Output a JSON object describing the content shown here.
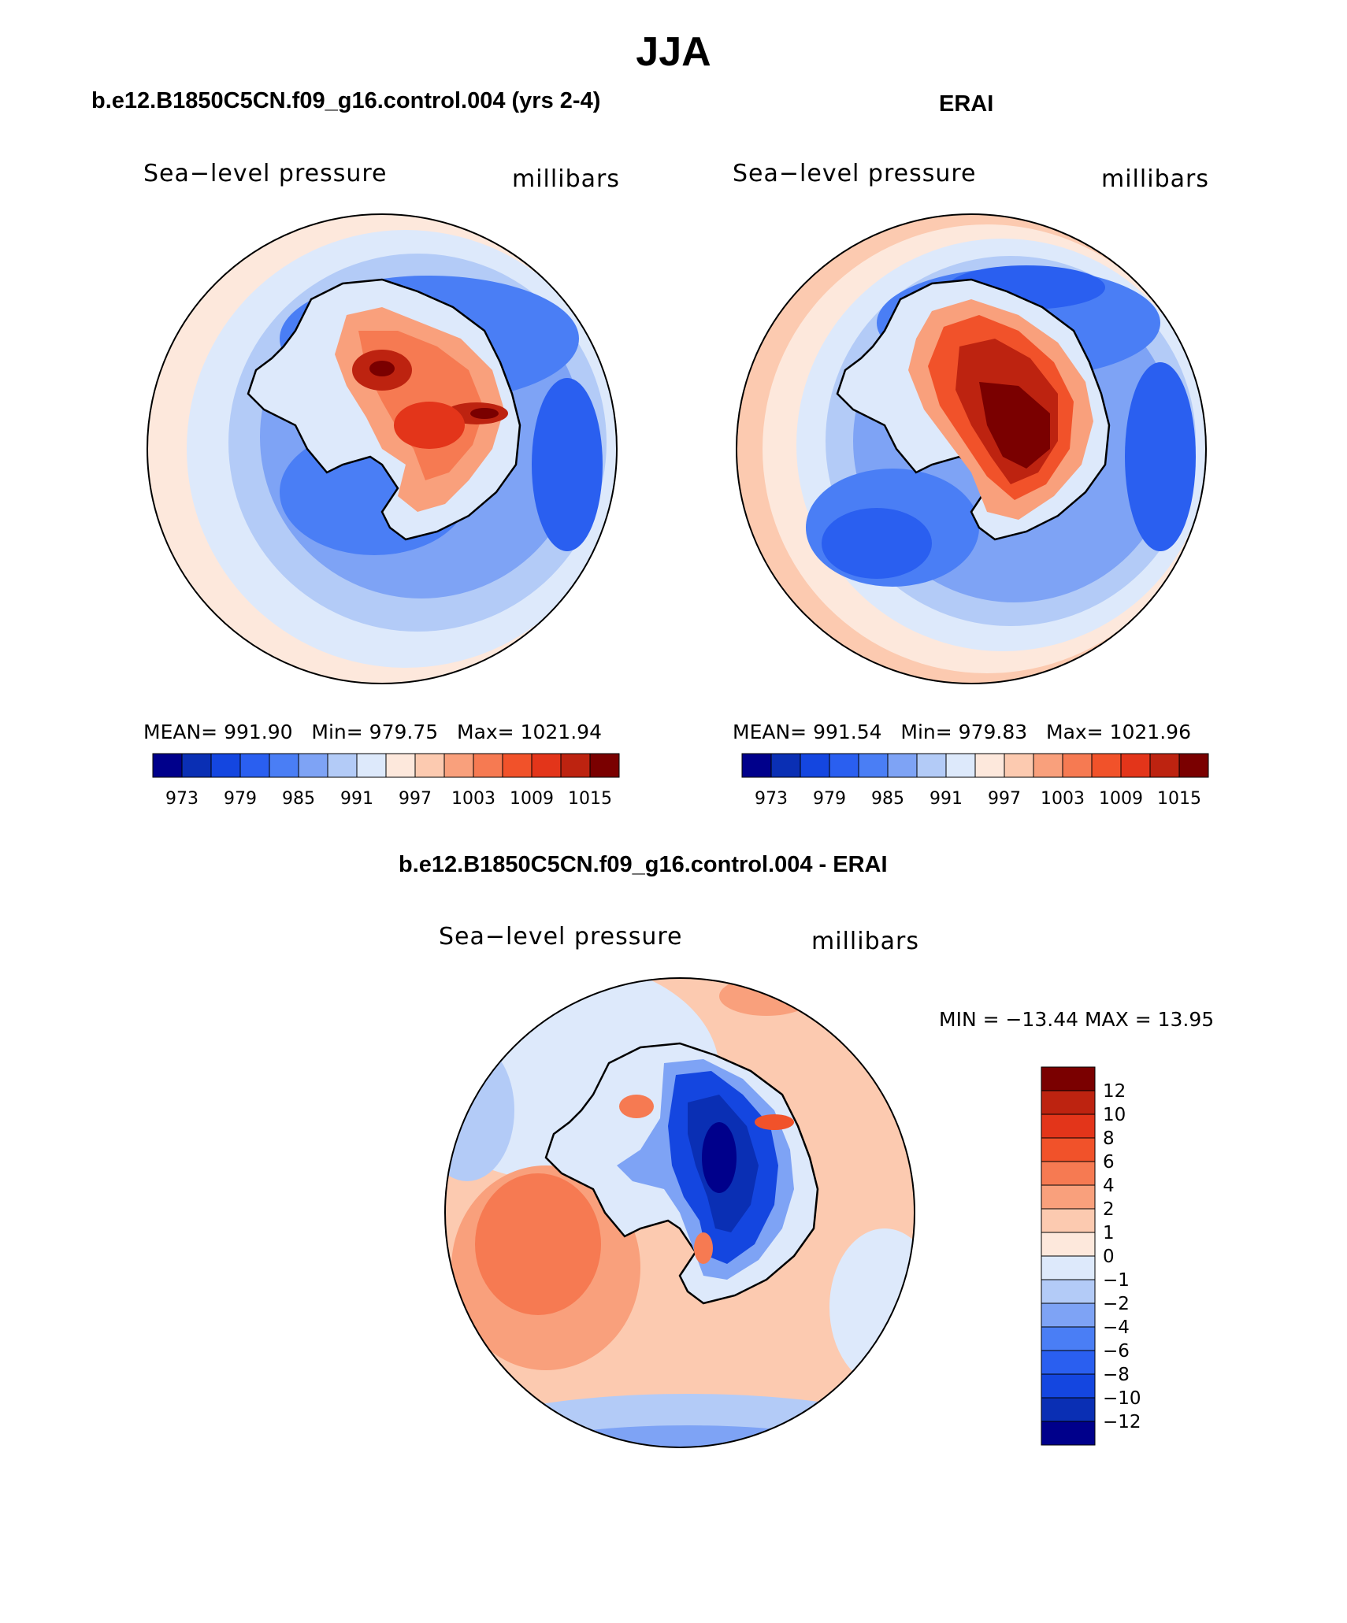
{
  "figure": {
    "title": "JJA",
    "difference_title": "b.e12.B1850C5CN.f09_g16.control.004 - ERAI"
  },
  "chart_data": [
    {
      "type": "heatmap",
      "title": "b.e12.B1850C5CN.f09_g16.control.004 (yrs 2-4)",
      "variable": "Sea−level pressure",
      "units": "millibars",
      "projection": "south polar stereographic",
      "stats": {
        "mean_label": "MEAN=",
        "mean": "991.90",
        "min_label": "Min=",
        "min": "979.75",
        "max_label": "Max=",
        "max": "1021.94"
      },
      "colorbar_ticks": [
        "973",
        "979",
        "985",
        "991",
        "997",
        "1003",
        "1009",
        "1015"
      ]
    },
    {
      "type": "heatmap",
      "title": "ERAI",
      "variable": "Sea−level pressure",
      "units": "millibars",
      "projection": "south polar stereographic",
      "stats": {
        "mean_label": "MEAN=",
        "mean": "991.54",
        "min_label": "Min=",
        "min": "979.83",
        "max_label": "Max=",
        "max": "1021.96"
      },
      "colorbar_ticks": [
        "973",
        "979",
        "985",
        "991",
        "997",
        "1003",
        "1009",
        "1015"
      ]
    },
    {
      "type": "heatmap",
      "title": "b.e12.B1850C5CN.f09_g16.control.004 - ERAI",
      "variable": "Sea−level pressure",
      "units": "millibars",
      "projection": "south polar stereographic",
      "minmax_text": "MIN = −13.44 MAX =   13.95",
      "colorbar_ticks": [
        "12",
        "10",
        "8",
        "6",
        "4",
        "2",
        "1",
        "0",
        "−1",
        "−2",
        "−4",
        "−6",
        "−8",
        "−10",
        "−12"
      ]
    }
  ],
  "colors": {
    "scale": [
      "#00008b",
      "#0a2fb4",
      "#1446e0",
      "#2a5ff0",
      "#4a7ef5",
      "#7ea3f5",
      "#b3cbf7",
      "#dde9fb",
      "#fde8dc",
      "#fccab0",
      "#f9a07c",
      "#f67a52",
      "#f1522a",
      "#e3351a",
      "#bd2310",
      "#7a0000"
    ]
  }
}
